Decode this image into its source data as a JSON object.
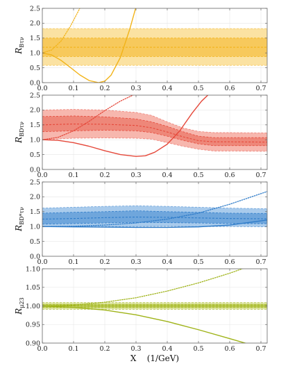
{
  "chart_data": [
    {
      "type": "line",
      "ylabel": "R",
      "ylabel_sub": "Bτν",
      "xlim": [
        0,
        0.72
      ],
      "ylim": [
        0,
        2.5
      ],
      "yticks": [
        "0.0",
        "0.5",
        "1.0",
        "1.5",
        "2.0",
        "2.5"
      ],
      "xticks": [
        "0.0",
        "0.1",
        "0.2",
        "0.3",
        "0.4",
        "0.5",
        "0.6",
        "0.7"
      ],
      "grid": true,
      "color": "#f2b318",
      "band_outer_color": "#fbe2a2",
      "band_inner_color": "#f7c95c",
      "bands": {
        "outer": {
          "x": [
            0,
            0.72
          ],
          "upper": [
            1.82,
            1.82
          ],
          "lower": [
            0.58,
            0.58
          ]
        },
        "inner": {
          "x": [
            0,
            0.72
          ],
          "upper": [
            1.5,
            1.5
          ],
          "lower": [
            0.88,
            0.88
          ]
        },
        "central": {
          "x": [
            0,
            0.72
          ],
          "y": [
            1.19,
            1.19
          ]
        }
      },
      "series": [
        {
          "style": "solid",
          "x": [
            0,
            0.03,
            0.06,
            0.09,
            0.12,
            0.15,
            0.18,
            0.2,
            0.22,
            0.25,
            0.28,
            0.3
          ],
          "y": [
            1.0,
            0.93,
            0.75,
            0.51,
            0.26,
            0.07,
            0.0,
            0.05,
            0.25,
            0.85,
            1.8,
            2.55
          ]
        },
        {
          "style": "dotted",
          "x": [
            0,
            0.03,
            0.06,
            0.09,
            0.12,
            0.15
          ],
          "y": [
            1.0,
            1.1,
            1.4,
            1.9,
            2.5,
            3.2
          ]
        }
      ]
    },
    {
      "type": "line",
      "ylabel": "R",
      "ylabel_sub": "BDτν",
      "xlim": [
        0,
        0.72
      ],
      "ylim": [
        0,
        2.5
      ],
      "yticks": [
        "0.0",
        "0.5",
        "1.0",
        "1.5",
        "2.0",
        "2.5"
      ],
      "xticks": [
        "0.0",
        "0.1",
        "0.2",
        "0.3",
        "0.4",
        "0.5",
        "0.6",
        "0.7"
      ],
      "grid": true,
      "color": "#e5483a",
      "band_outer_color": "#f7b7ae",
      "band_inner_color": "#ee8779",
      "bands": {
        "outer": {
          "x": [
            0,
            0.1,
            0.2,
            0.3,
            0.35,
            0.4,
            0.45,
            0.5,
            0.55,
            0.6,
            0.72
          ],
          "upper": [
            2.0,
            2.02,
            2.0,
            1.92,
            1.82,
            1.6,
            1.4,
            1.28,
            1.24,
            1.24,
            1.23
          ],
          "lower": [
            1.0,
            1.05,
            1.06,
            1.05,
            1.02,
            0.9,
            0.78,
            0.68,
            0.62,
            0.62,
            0.61
          ]
        },
        "inner": {
          "x": [
            0,
            0.1,
            0.2,
            0.3,
            0.35,
            0.4,
            0.45,
            0.5,
            0.55,
            0.6,
            0.72
          ],
          "upper": [
            1.78,
            1.8,
            1.77,
            1.7,
            1.6,
            1.45,
            1.27,
            1.12,
            1.07,
            1.07,
            1.07
          ],
          "lower": [
            1.27,
            1.3,
            1.32,
            1.3,
            1.24,
            1.12,
            0.98,
            0.86,
            0.8,
            0.8,
            0.8
          ]
        },
        "central": {
          "x": [
            0,
            0.1,
            0.2,
            0.3,
            0.35,
            0.4,
            0.45,
            0.5,
            0.55,
            0.6,
            0.72
          ],
          "y": [
            1.5,
            1.53,
            1.52,
            1.48,
            1.4,
            1.26,
            1.1,
            0.97,
            0.93,
            0.93,
            0.92
          ]
        }
      },
      "series": [
        {
          "style": "solid",
          "x": [
            0,
            0.05,
            0.1,
            0.15,
            0.2,
            0.25,
            0.3,
            0.33,
            0.36,
            0.4,
            0.44,
            0.48,
            0.51,
            0.54
          ],
          "y": [
            1.0,
            0.98,
            0.9,
            0.78,
            0.63,
            0.5,
            0.44,
            0.46,
            0.58,
            0.85,
            1.3,
            1.9,
            2.3,
            2.6
          ]
        },
        {
          "style": "dotted",
          "x": [
            0,
            0.05,
            0.1,
            0.15,
            0.2,
            0.25,
            0.3
          ],
          "y": [
            1.0,
            1.08,
            1.3,
            1.62,
            1.98,
            2.3,
            2.55
          ]
        }
      ]
    },
    {
      "type": "line",
      "ylabel": "R",
      "ylabel_sub": "BD*τν",
      "xlim": [
        0,
        0.72
      ],
      "ylim": [
        0,
        2.5
      ],
      "yticks": [
        "0.0",
        "0.5",
        "1.0",
        "1.5",
        "2.0",
        "2.5"
      ],
      "xticks": [
        "0.0",
        "0.1",
        "0.2",
        "0.3",
        "0.4",
        "0.5",
        "0.6",
        "0.7"
      ],
      "grid": true,
      "color": "#2f7cc9",
      "band_outer_color": "#a9cbec",
      "band_inner_color": "#6fa6dc",
      "bands": {
        "outer": {
          "x": [
            0,
            0.1,
            0.2,
            0.3,
            0.4,
            0.5,
            0.6,
            0.72
          ],
          "upper": [
            1.62,
            1.65,
            1.68,
            1.7,
            1.68,
            1.65,
            1.62,
            1.6
          ],
          "lower": [
            0.99,
            1.0,
            1.0,
            1.0,
            1.01,
            1.0,
            1.0,
            0.99
          ]
        },
        "inner": {
          "x": [
            0,
            0.1,
            0.2,
            0.3,
            0.4,
            0.5,
            0.6,
            0.72
          ],
          "upper": [
            1.45,
            1.48,
            1.5,
            1.53,
            1.5,
            1.48,
            1.45,
            1.44
          ],
          "lower": [
            1.08,
            1.1,
            1.12,
            1.14,
            1.13,
            1.12,
            1.1,
            1.1
          ]
        },
        "central": {
          "x": [
            0,
            0.1,
            0.2,
            0.3,
            0.4,
            0.5,
            0.6,
            0.72
          ],
          "y": [
            1.25,
            1.27,
            1.3,
            1.32,
            1.31,
            1.29,
            1.27,
            1.26
          ]
        }
      },
      "series": [
        {
          "style": "solid",
          "x": [
            0,
            0.1,
            0.2,
            0.3,
            0.4,
            0.5,
            0.6,
            0.72
          ],
          "y": [
            1.0,
            0.99,
            0.98,
            0.97,
            0.97,
            0.99,
            1.05,
            1.22
          ]
        },
        {
          "style": "dotted",
          "x": [
            0,
            0.1,
            0.2,
            0.3,
            0.4,
            0.5,
            0.6,
            0.72
          ],
          "y": [
            1.0,
            1.01,
            1.05,
            1.12,
            1.25,
            1.45,
            1.75,
            2.18
          ]
        }
      ]
    },
    {
      "type": "line",
      "ylabel": "R",
      "ylabel_sub": "μ23",
      "xlim": [
        0,
        0.72
      ],
      "ylim": [
        0.9,
        1.1
      ],
      "yticks": [
        "0.90",
        "0.95",
        "1.00",
        "1.05",
        "1.10"
      ],
      "xticks": [
        "0.0",
        "0.1",
        "0.2",
        "0.3",
        "0.4",
        "0.5",
        "0.6",
        "0.7"
      ],
      "grid": true,
      "xlabel": "X    (1/GeV)",
      "color": "#9fb318",
      "band_outer_color": "#dfe6a6",
      "band_inner_color": "#bccb55",
      "bands": {
        "outer": {
          "x": [
            0,
            0.72
          ],
          "upper": [
            1.0092,
            1.0092
          ],
          "lower": [
            0.9908,
            0.9908
          ]
        },
        "inner": {
          "x": [
            0,
            0.72
          ],
          "upper": [
            1.0045,
            1.0045
          ],
          "lower": [
            0.9955,
            0.9955
          ]
        },
        "central": {
          "x": [
            0,
            0.72
          ],
          "y": [
            1.0,
            1.0
          ]
        }
      },
      "series": [
        {
          "style": "solid",
          "x": [
            0,
            0.1,
            0.2,
            0.3,
            0.4,
            0.5,
            0.6,
            0.67
          ],
          "y": [
            1.0,
            0.996,
            0.989,
            0.976,
            0.958,
            0.936,
            0.912,
            0.895
          ]
        },
        {
          "style": "dotted",
          "x": [
            0,
            0.1,
            0.2,
            0.3,
            0.4,
            0.5,
            0.6,
            0.68
          ],
          "y": [
            1.0,
            1.002,
            1.01,
            1.022,
            1.04,
            1.062,
            1.088,
            1.112
          ]
        }
      ]
    }
  ]
}
